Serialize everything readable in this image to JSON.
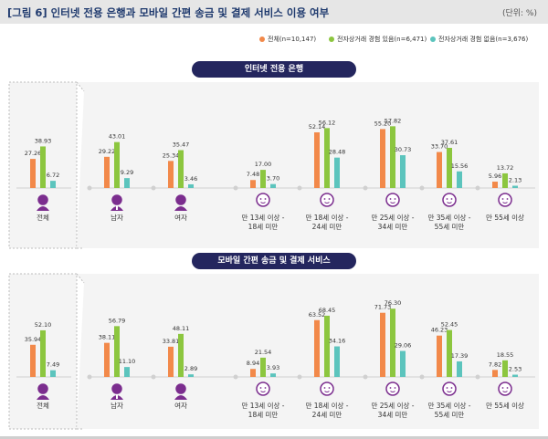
{
  "header": {
    "title": "[그림 6]  인터넷 전용 은행과 모바일 간편 송금 및 결제 서비스 이용 여부",
    "unit": "(단위: %)"
  },
  "legend": [
    {
      "name": "전체(n=10,147)",
      "color": "#f2894a"
    },
    {
      "name": "전자상거래 경험 있음(n=6,471)",
      "color": "#8cc63f"
    },
    {
      "name": "전자상거래 경험 없음(n=3,676)",
      "color": "#5cc4bd"
    }
  ],
  "chart_data": [
    {
      "type": "bar",
      "title": "인터넷 전용 은행",
      "categories": [
        "전체",
        "남자",
        "여자",
        "만 13세 이상 - 18세 미만",
        "만 18세 이상 - 24세 미만",
        "만 25세 이상 - 34세 미만",
        "만 35세 이상 - 55세 미만",
        "만 55세 이상"
      ],
      "series": [
        {
          "name": "전체(n=10,147)",
          "values": [
            27.26,
            29.22,
            25.34,
            7.48,
            52.14,
            55.2,
            33.7,
            5.96
          ]
        },
        {
          "name": "전자상거래 경험 있음(n=6,471)",
          "values": [
            38.93,
            43.01,
            35.47,
            17.0,
            56.12,
            57.82,
            37.61,
            13.72
          ]
        },
        {
          "name": "전자상거래 경험 없음(n=3,676)",
          "values": [
            6.72,
            9.29,
            3.46,
            3.7,
            28.48,
            30.73,
            15.56,
            2.13
          ]
        }
      ]
    },
    {
      "type": "bar",
      "title": "모바일 간편 송금 및 결제 서비스",
      "categories": [
        "전체",
        "남자",
        "여자",
        "만 13세 이상 - 18세 미만",
        "만 18세 이상 - 24세 미만",
        "만 25세 이상 - 34세 미만",
        "만 35세 이상 - 55세 미만",
        "만 55세 이상"
      ],
      "series": [
        {
          "name": "전체(n=10,147)",
          "values": [
            35.94,
            38.11,
            33.81,
            8.94,
            63.52,
            71.73,
            46.23,
            7.82
          ]
        },
        {
          "name": "전자상거래 경험 있음(n=6,471)",
          "values": [
            52.1,
            56.79,
            48.11,
            21.54,
            68.45,
            76.3,
            52.45,
            18.55
          ]
        },
        {
          "name": "전자상거래 경험 없음(n=3,676)",
          "values": [
            7.49,
            11.1,
            2.89,
            3.93,
            34.16,
            29.06,
            17.39,
            2.53
          ]
        }
      ]
    }
  ],
  "value_labels": [
    [
      "27.26",
      "29.22",
      "25.34",
      "7.48",
      "52.14",
      "55.20",
      "33.70",
      "5.96"
    ],
    [
      "38.93",
      "43.01",
      "35.47",
      "17.00",
      "56.12",
      "57.82",
      "37.61",
      "13.72"
    ],
    [
      "6.72",
      "9.29",
      "3.46",
      "3.70",
      "28.48",
      "30.73",
      "15.56",
      "2.13"
    ],
    [
      "35.94",
      "38.11",
      "33.81",
      "8.94",
      "63.52",
      "71.73",
      "46.23",
      "7.82"
    ],
    [
      "52.10",
      "56.79",
      "48.11",
      "21.54",
      "68.45",
      "76.30",
      "52.45",
      "18.55"
    ],
    [
      "7.49",
      "11.10",
      "2.89",
      "3.93",
      "34.16",
      "29.06",
      "17.39",
      "2.53"
    ]
  ],
  "category_labels": [
    [
      "전체"
    ],
    [
      "남자"
    ],
    [
      "여자"
    ],
    [
      "만 13세 이상 -",
      "18세 미만"
    ],
    [
      "만 18세 이상 -",
      "24세 미만"
    ],
    [
      "만 25세 이상 -",
      "34세 미만"
    ],
    [
      "만 35세 이상 -",
      "55세 미만"
    ],
    [
      "만 55세 이상"
    ]
  ],
  "icons": [
    "person-icon",
    "male-person-icon",
    "female-person-icon",
    "teen-face-icon",
    "young-adult-face-icon",
    "adult-face-icon",
    "middle-age-face-icon",
    "senior-face-icon"
  ],
  "colors": {
    "accent": "#24265e",
    "purple": "#7b2d8e",
    "background": "#f4f4f4"
  }
}
